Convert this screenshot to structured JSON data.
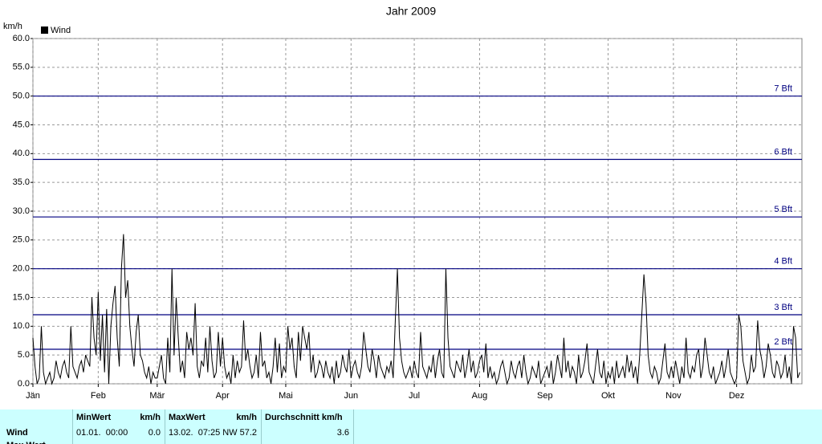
{
  "chart_data": {
    "type": "line",
    "title": "Jahr 2009",
    "y_label": "km/h",
    "xlim": [
      0,
      365
    ],
    "xticks": [
      {
        "value": 0,
        "label": "Jän"
      },
      {
        "value": 31,
        "label": "Feb"
      },
      {
        "value": 59,
        "label": "Mär"
      },
      {
        "value": 90,
        "label": "Apr"
      },
      {
        "value": 120,
        "label": "Mai"
      },
      {
        "value": 151,
        "label": "Jun"
      },
      {
        "value": 181,
        "label": "Jul"
      },
      {
        "value": 212,
        "label": "Aug"
      },
      {
        "value": 243,
        "label": "Sep"
      },
      {
        "value": 273,
        "label": "Okt"
      },
      {
        "value": 304,
        "label": "Nov"
      },
      {
        "value": 334,
        "label": "Dez"
      }
    ],
    "ylim": [
      0,
      60
    ],
    "yticks": [
      {
        "value": 0,
        "label": "0.0"
      },
      {
        "value": 5,
        "label": "5.0"
      },
      {
        "value": 10,
        "label": "10.0"
      },
      {
        "value": 15,
        "label": "15.0"
      },
      {
        "value": 20,
        "label": "20.0"
      },
      {
        "value": 25,
        "label": "25.0"
      },
      {
        "value": 30,
        "label": "30.0"
      },
      {
        "value": 35,
        "label": "35.0"
      },
      {
        "value": 40,
        "label": "40.0"
      },
      {
        "value": 45,
        "label": "45.0"
      },
      {
        "value": 50,
        "label": "50.0"
      },
      {
        "value": 55,
        "label": "55.0"
      },
      {
        "value": 60,
        "label": "60.0"
      }
    ],
    "grid": true,
    "bft_lines": {
      "color": "#000080",
      "lines": [
        {
          "value": 6,
          "label": "2 Bft"
        },
        {
          "value": 12,
          "label": "3 Bft"
        },
        {
          "value": 20,
          "label": "4 Bft"
        },
        {
          "value": 29,
          "label": "5 Bft"
        },
        {
          "value": 39,
          "label": "6 Bft"
        },
        {
          "value": 50,
          "label": "7 Bft"
        }
      ]
    },
    "x": [
      0,
      1,
      2,
      3,
      4,
      5,
      6,
      7,
      8,
      9,
      10,
      11,
      12,
      13,
      14,
      15,
      16,
      17,
      18,
      19,
      20,
      21,
      22,
      23,
      24,
      25,
      26,
      27,
      28,
      29,
      30,
      31,
      32,
      33,
      34,
      35,
      36,
      37,
      38,
      39,
      40,
      41,
      42,
      43,
      44,
      45,
      46,
      47,
      48,
      49,
      50,
      51,
      52,
      53,
      54,
      55,
      56,
      57,
      58,
      59,
      60,
      61,
      62,
      63,
      64,
      65,
      66,
      67,
      68,
      69,
      70,
      71,
      72,
      73,
      74,
      75,
      76,
      77,
      78,
      79,
      80,
      81,
      82,
      83,
      84,
      85,
      86,
      87,
      88,
      89,
      90,
      91,
      92,
      93,
      94,
      95,
      96,
      97,
      98,
      99,
      100,
      101,
      102,
      103,
      104,
      105,
      106,
      107,
      108,
      109,
      110,
      111,
      112,
      113,
      114,
      115,
      116,
      117,
      118,
      119,
      120,
      121,
      122,
      123,
      124,
      125,
      126,
      127,
      128,
      129,
      130,
      131,
      132,
      133,
      134,
      135,
      136,
      137,
      138,
      139,
      140,
      141,
      142,
      143,
      144,
      145,
      146,
      147,
      148,
      149,
      150,
      151,
      152,
      153,
      154,
      155,
      156,
      157,
      158,
      159,
      160,
      161,
      162,
      163,
      164,
      165,
      166,
      167,
      168,
      169,
      170,
      171,
      172,
      173,
      174,
      175,
      176,
      177,
      178,
      179,
      180,
      181,
      182,
      183,
      184,
      185,
      186,
      187,
      188,
      189,
      190,
      191,
      192,
      193,
      194,
      195,
      196,
      197,
      198,
      199,
      200,
      201,
      202,
      203,
      204,
      205,
      206,
      207,
      208,
      209,
      210,
      211,
      212,
      213,
      214,
      215,
      216,
      217,
      218,
      219,
      220,
      221,
      222,
      223,
      224,
      225,
      226,
      227,
      228,
      229,
      230,
      231,
      232,
      233,
      234,
      235,
      236,
      237,
      238,
      239,
      240,
      241,
      242,
      243,
      244,
      245,
      246,
      247,
      248,
      249,
      250,
      251,
      252,
      253,
      254,
      255,
      256,
      257,
      258,
      259,
      260,
      261,
      262,
      263,
      264,
      265,
      266,
      267,
      268,
      269,
      270,
      271,
      272,
      273,
      274,
      275,
      276,
      277,
      278,
      279,
      280,
      281,
      282,
      283,
      284,
      285,
      286,
      287,
      288,
      289,
      290,
      291,
      292,
      293,
      294,
      295,
      296,
      297,
      298,
      299,
      300,
      301,
      302,
      303,
      304,
      305,
      306,
      307,
      308,
      309,
      310,
      311,
      312,
      313,
      314,
      315,
      316,
      317,
      318,
      319,
      320,
      321,
      322,
      323,
      324,
      325,
      326,
      327,
      328,
      329,
      330,
      331,
      332,
      333,
      334,
      335,
      336,
      337,
      338,
      339,
      340,
      341,
      342,
      343,
      344,
      345,
      346,
      347,
      348,
      349,
      350,
      351,
      352,
      353,
      354,
      355,
      356,
      357,
      358,
      359,
      360,
      361,
      362,
      363,
      364
    ],
    "series": [
      {
        "name": "Wind",
        "color": "#000000",
        "values": [
          8,
          3,
          0,
          1,
          10,
          2,
          0,
          1,
          2,
          0,
          1,
          4,
          2,
          1,
          3,
          4,
          2,
          1,
          10,
          3,
          2,
          1,
          3,
          4,
          2,
          5,
          4,
          3,
          15,
          8,
          5,
          16,
          4,
          12,
          2,
          13,
          0,
          10,
          14,
          17,
          8,
          3,
          20,
          26,
          15,
          18,
          10,
          6,
          3,
          9,
          12,
          5,
          4,
          2,
          1,
          3,
          0,
          2,
          1,
          1,
          3,
          5,
          1,
          0,
          8,
          2,
          20,
          5,
          15,
          8,
          2,
          4,
          1,
          9,
          6,
          8,
          5,
          14,
          3,
          1,
          4,
          3,
          8,
          2,
          10,
          4,
          1,
          2,
          9,
          3,
          8,
          3,
          1,
          2,
          0,
          5,
          1,
          4,
          2,
          3,
          11,
          4,
          6,
          3,
          1,
          2,
          5,
          1,
          9,
          3,
          4,
          1,
          2,
          0,
          3,
          8,
          2,
          7,
          1,
          3,
          2,
          10,
          6,
          8,
          3,
          1,
          9,
          4,
          10,
          8,
          6,
          9,
          2,
          5,
          1,
          2,
          4,
          3,
          1,
          4,
          2,
          1,
          3,
          0,
          4,
          1,
          2,
          5,
          3,
          2,
          6,
          1,
          3,
          4,
          2,
          1,
          3,
          9,
          6,
          3,
          2,
          6,
          4,
          1,
          5,
          3,
          2,
          1,
          3,
          2,
          4,
          1,
          11,
          20,
          8,
          4,
          2,
          1,
          2,
          3,
          1,
          4,
          2,
          1,
          9,
          3,
          2,
          1,
          3,
          2,
          5,
          1,
          4,
          6,
          2,
          1,
          20,
          8,
          3,
          2,
          1,
          4,
          3,
          2,
          5,
          1,
          3,
          6,
          2,
          4,
          1,
          2,
          4,
          5,
          2,
          7,
          1,
          3,
          1,
          2,
          0,
          1,
          3,
          4,
          2,
          0,
          1,
          4,
          2,
          1,
          3,
          4,
          1,
          5,
          2,
          0,
          1,
          3,
          2,
          1,
          4,
          0,
          1,
          2,
          3,
          1,
          4,
          0,
          2,
          5,
          3,
          1,
          8,
          2,
          4,
          1,
          3,
          2,
          0,
          5,
          1,
          2,
          4,
          7,
          2,
          1,
          0,
          3,
          6,
          2,
          1,
          4,
          0,
          2,
          1,
          3,
          0,
          4,
          1,
          2,
          3,
          1,
          5,
          2,
          4,
          1,
          3,
          0,
          5,
          12,
          19,
          14,
          5,
          2,
          1,
          3,
          2,
          0,
          1,
          4,
          7,
          2,
          1,
          3,
          1,
          4,
          2,
          0,
          3,
          1,
          8,
          2,
          1,
          3,
          2,
          5,
          6,
          1,
          3,
          8,
          5,
          2,
          1,
          3,
          0,
          1,
          2,
          4,
          1,
          3,
          6,
          2,
          1,
          0,
          1,
          12,
          10,
          4,
          2,
          0,
          1,
          5,
          2,
          3,
          11,
          6,
          4,
          1,
          3,
          7,
          5,
          2,
          1,
          4,
          3,
          1,
          2,
          5,
          1,
          3,
          0,
          10,
          8,
          1,
          2
        ]
      }
    ]
  },
  "table": {
    "headers": [
      {
        "left": "MinWert",
        "right": "km/h"
      },
      {
        "left": "MaxWert",
        "right": "km/h"
      },
      {
        "left": "Durchschnitt km/h"
      }
    ],
    "rows": [
      {
        "label": "Wind",
        "cells": [
          [
            "01.01.  00:00",
            "0.0"
          ],
          [
            "13.02.  07:25",
            "NW 57.2"
          ],
          [
            "3.6"
          ]
        ]
      },
      {
        "label": "Max Wert"
      }
    ]
  }
}
